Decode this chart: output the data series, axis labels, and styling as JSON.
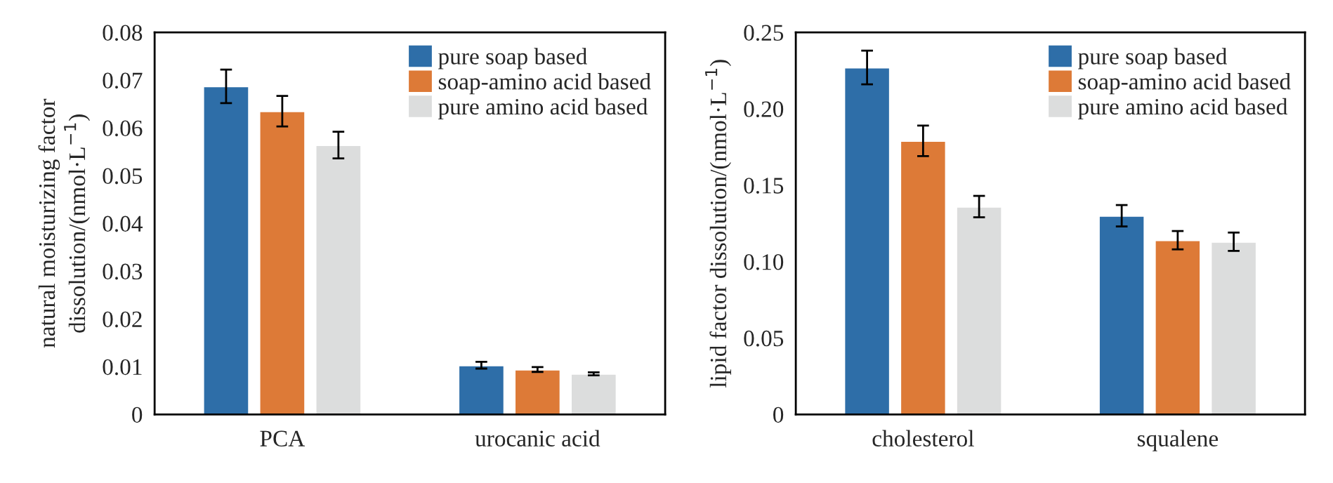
{
  "chart_data": [
    {
      "type": "bar",
      "ylabel": "natural moisturizing factor\ndissolution/(nmol·L$^{−1}$)",
      "categories": [
        "PCA",
        "urocanic acid"
      ],
      "series": [
        {
          "name": "pure soap based",
          "color": "#2e6ea8",
          "values": [
            0.0687,
            0.0103
          ],
          "errors": [
            0.0035,
            0.0007
          ]
        },
        {
          "name": "soap-amino acid based",
          "color": "#dd7a37",
          "values": [
            0.0635,
            0.0094
          ],
          "errors": [
            0.0032,
            0.0005
          ]
        },
        {
          "name": "pure amino acid based",
          "color": "#dcdddd",
          "values": [
            0.0564,
            0.0085
          ],
          "errors": [
            0.0028,
            0.0003
          ]
        }
      ],
      "ylim": [
        0,
        0.08
      ],
      "yticks": [
        0,
        0.01,
        0.02,
        0.03,
        0.04,
        0.05,
        0.06,
        0.07,
        0.08
      ],
      "grid": false,
      "legend": "top right"
    },
    {
      "type": "bar",
      "ylabel": "lipid factor dissolution/(nmol·L$^{−1}$)",
      "categories": [
        "cholesterol",
        "squalene"
      ],
      "series": [
        {
          "name": "pure soap based",
          "color": "#2e6ea8",
          "values": [
            0.227,
            0.13
          ],
          "errors": [
            0.011,
            0.007
          ]
        },
        {
          "name": "soap-amino acid based",
          "color": "#dd7a37",
          "values": [
            0.179,
            0.114
          ],
          "errors": [
            0.01,
            0.006
          ]
        },
        {
          "name": "pure amino acid based",
          "color": "#dcdddd",
          "values": [
            0.136,
            0.113
          ],
          "errors": [
            0.007,
            0.006
          ]
        }
      ],
      "ylim": [
        0,
        0.25
      ],
      "yticks": [
        0,
        {
          "value": 0.05,
          "label": "0.05"
        },
        {
          "value": 0.1,
          "label": "0.10"
        },
        {
          "value": 0.15,
          "label": "0.15"
        },
        {
          "value": 0.2,
          "label": "0.20"
        },
        {
          "value": 0.25,
          "label": "0.25"
        }
      ],
      "grid": false,
      "legend": "top right"
    }
  ]
}
